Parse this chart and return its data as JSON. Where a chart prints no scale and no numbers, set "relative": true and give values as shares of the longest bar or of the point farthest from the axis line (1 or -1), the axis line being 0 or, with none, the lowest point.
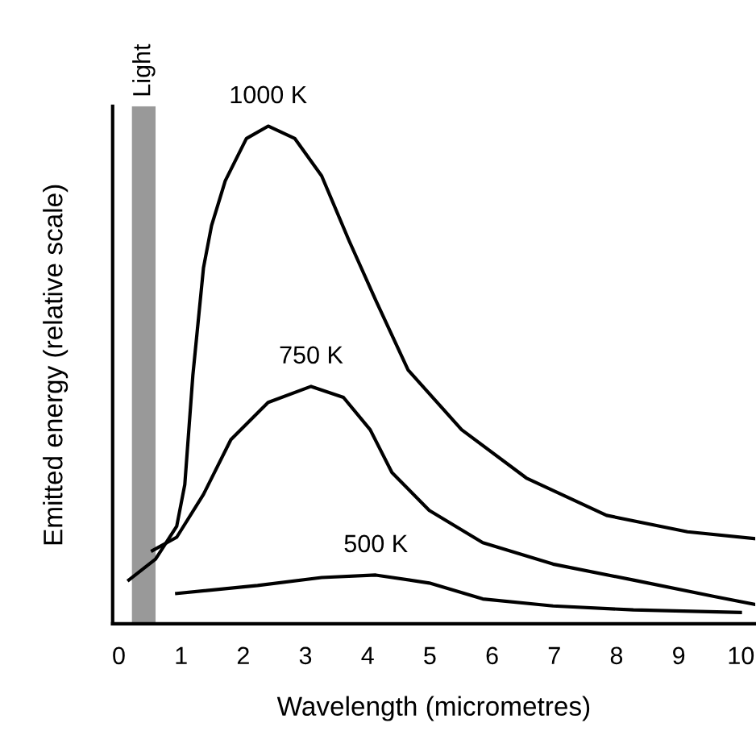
{
  "chart_data": {
    "type": "line",
    "relative": true,
    "xlabel": "Wavelength (micrometres)",
    "ylabel": "Emitted energy (relative scale)",
    "xlim": [
      -0.1,
      10.23
    ],
    "xticks": [
      0,
      1,
      2,
      3,
      4,
      5,
      6,
      7,
      8,
      9,
      10
    ],
    "grid": false,
    "legend": false,
    "marker": "none",
    "line_style": "solid",
    "tick_labels": "x",
    "bands": [
      {
        "axis": "x",
        "from": 0.21,
        "to": 0.59,
        "label": "Light",
        "color": "#999999"
      }
    ],
    "series": [
      {
        "name": "1000 K",
        "color": "#000000",
        "x": [
          0.16,
          0.59,
          0.93,
          1.06,
          1.19,
          1.36,
          1.49,
          1.71,
          2.05,
          2.4,
          2.83,
          3.26,
          3.7,
          4.13,
          4.65,
          5.51,
          6.55,
          7.84,
          9.14,
          10.23
        ],
        "values": [
          0.088,
          0.13,
          0.196,
          0.28,
          0.5,
          0.715,
          0.8,
          0.89,
          0.975,
          1.0,
          0.975,
          0.9,
          0.77,
          0.65,
          0.51,
          0.39,
          0.293,
          0.218,
          0.185,
          0.171
        ]
      },
      {
        "name": "750 K",
        "color": "#000000",
        "x": [
          0.54,
          0.93,
          1.36,
          1.8,
          2.4,
          3.09,
          3.61,
          4.04,
          4.39,
          4.99,
          5.85,
          6.98,
          8.27,
          9.57,
          10.23
        ],
        "values": [
          0.147,
          0.174,
          0.26,
          0.37,
          0.445,
          0.477,
          0.455,
          0.39,
          0.304,
          0.228,
          0.163,
          0.12,
          0.088,
          0.055,
          0.039
        ]
      },
      {
        "name": "500 K",
        "color": "#000000",
        "x": [
          0.93,
          2.23,
          3.26,
          4.13,
          4.99,
          5.85,
          6.98,
          8.27,
          9.99
        ],
        "values": [
          0.061,
          0.077,
          0.093,
          0.098,
          0.082,
          0.05,
          0.036,
          0.028,
          0.023
        ]
      }
    ]
  }
}
